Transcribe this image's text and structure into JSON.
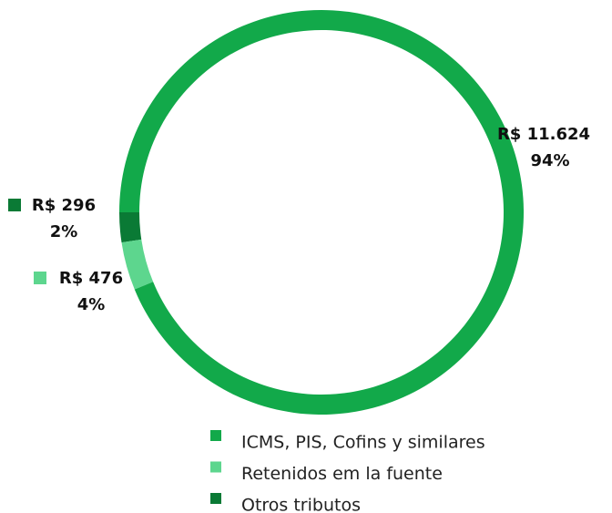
{
  "chart_data": {
    "type": "donut",
    "categories": [
      "ICMS, PIS, Cofins y similares",
      "Retenidos em la fuente",
      "Otros tributos"
    ],
    "values": [
      11624,
      476,
      296
    ],
    "value_labels": [
      "R$ 11.624",
      "R$ 476",
      "R$ 296"
    ],
    "percents": [
      94,
      4,
      2
    ],
    "percent_labels": [
      "94%",
      "4%",
      "2%"
    ],
    "colors": [
      "#12a94a",
      "#5dd68e",
      "#0a7a35"
    ],
    "legend": "bottom"
  }
}
